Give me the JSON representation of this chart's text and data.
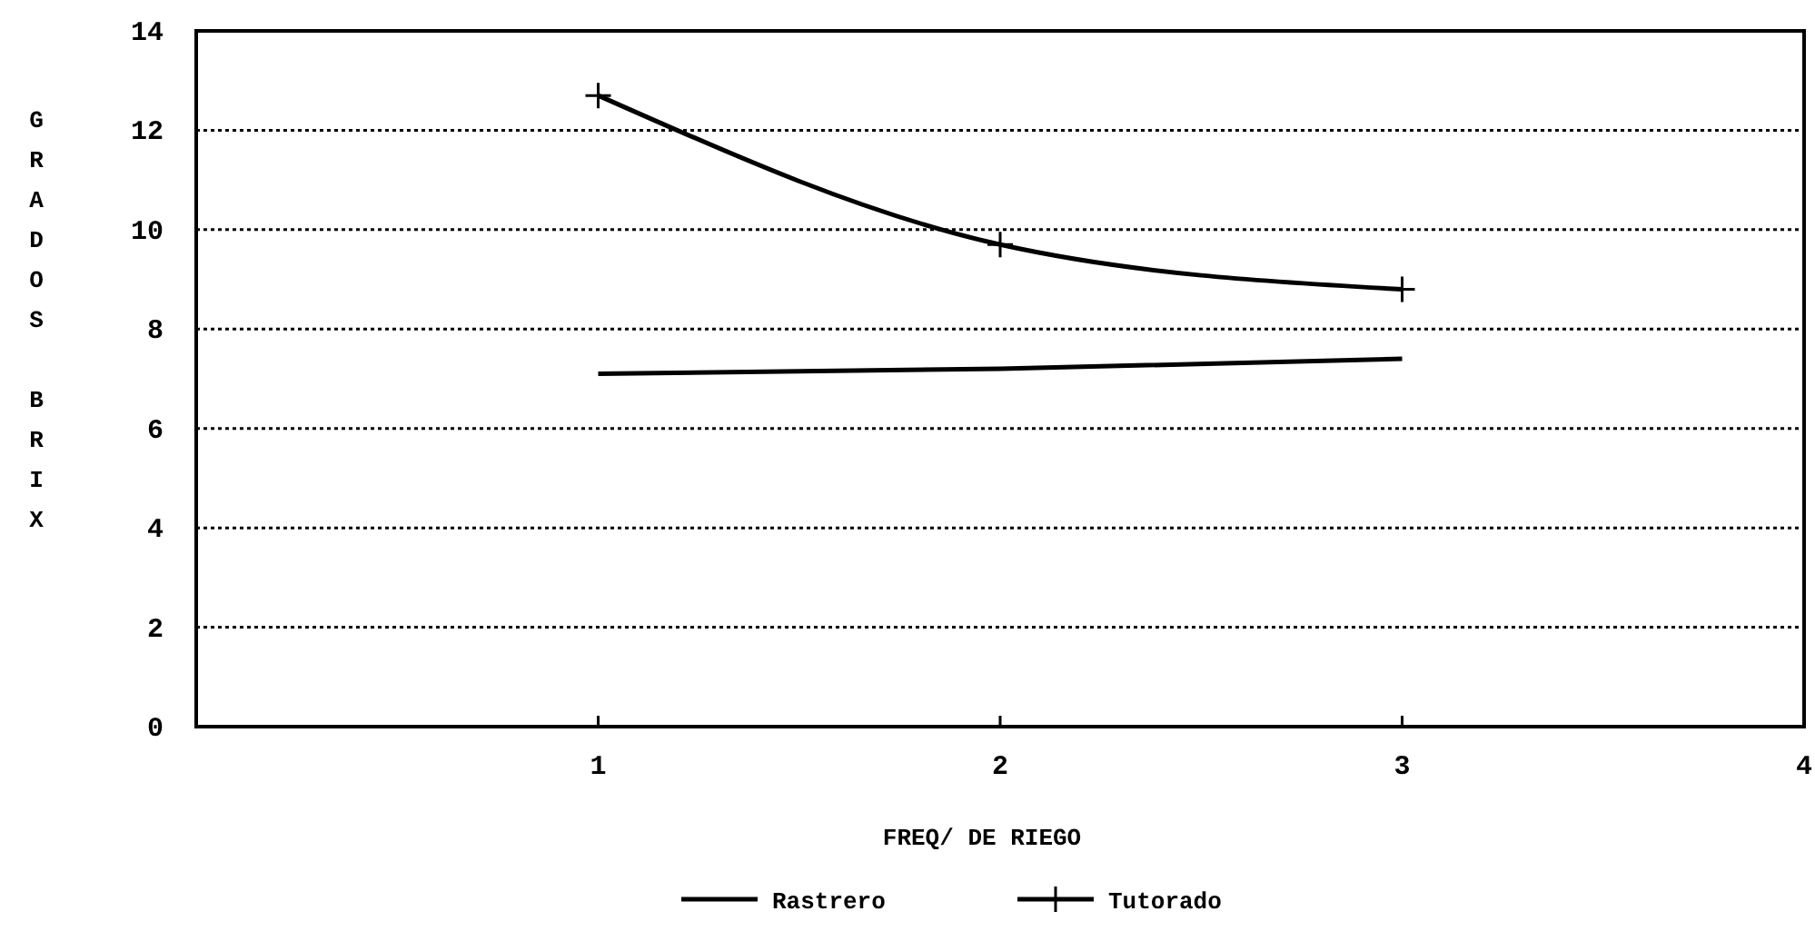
{
  "chart_data": {
    "type": "line",
    "xlabel": "FREQ/ DE RIEGO",
    "ylabel": "GRADOS BRIX",
    "x": [
      1,
      2,
      3
    ],
    "series": [
      {
        "name": "Rastrero",
        "color": "#000000",
        "values": [
          7.1,
          7.2,
          7.4
        ],
        "marker": "none"
      },
      {
        "name": "Tutorado",
        "color": "#000000",
        "values": [
          12.7,
          9.7,
          8.8
        ],
        "marker": "cross"
      }
    ],
    "xlim": [
      0,
      4
    ],
    "xticks": [
      {
        "value": 0,
        "label": null
      },
      1,
      2,
      3,
      4
    ],
    "ylim": [
      0,
      14
    ],
    "yticks": [
      0,
      2,
      4,
      6,
      8,
      10,
      12,
      14
    ],
    "grid": "y",
    "legend": "bottom",
    "line_style": "solid"
  }
}
